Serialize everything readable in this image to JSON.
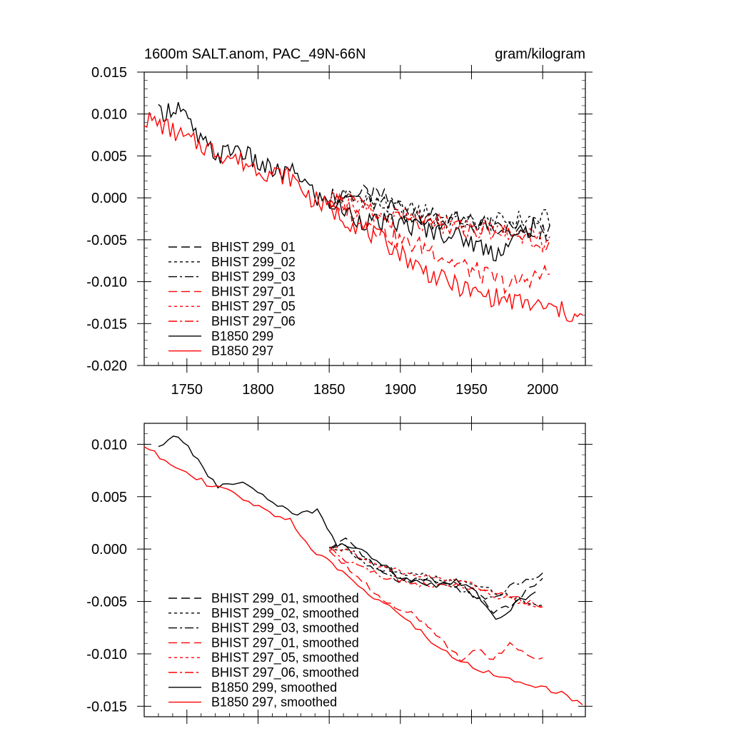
{
  "chart_data": [
    {
      "type": "line",
      "title_left": "1600m SALT.anom, PAC_49N-66N",
      "title_right": "gram/kilogram",
      "xlim": [
        1720,
        2030
      ],
      "ylim": [
        -0.02,
        0.015
      ],
      "xticks": [
        1750,
        1800,
        1850,
        1900,
        1950,
        2000
      ],
      "xtick_labels": [
        "1750",
        "1800",
        "1850",
        "1900",
        "1950",
        "2000"
      ],
      "yticks": [
        0.015,
        0.01,
        0.005,
        0.0,
        -0.005,
        -0.01,
        -0.015,
        -0.02
      ],
      "ytick_labels": [
        "0.015",
        "0.010",
        "0.005",
        "0.000",
        "-0.005",
        "-0.010",
        "-0.015",
        "-0.020"
      ],
      "legend_position": "bottom-left",
      "series": [
        {
          "name": "BHIST 299_01",
          "color": "#000000",
          "dash": "long-dash",
          "start": 1850,
          "end": 2005,
          "values": [
            0.0,
            0.0005,
            0.0,
            -0.002,
            -0.0025,
            -0.003,
            -0.0033,
            -0.0037,
            -0.004
          ]
        },
        {
          "name": "BHIST 299_02",
          "color": "#000000",
          "dash": "dotted",
          "start": 1850,
          "end": 2005,
          "values": [
            0.0,
            0.0002,
            -0.001,
            -0.0015,
            -0.002,
            -0.003,
            -0.003,
            -0.0025,
            -0.0025
          ]
        },
        {
          "name": "BHIST 299_03",
          "color": "#000000",
          "dash": "dash-dot",
          "start": 1850,
          "end": 2005,
          "values": [
            0.0,
            0.0,
            -0.001,
            -0.002,
            -0.0028,
            -0.003,
            -0.0035,
            -0.004,
            -0.004
          ]
        },
        {
          "name": "BHIST 297_01",
          "color": "#ff0000",
          "dash": "long-dash",
          "start": 1850,
          "end": 2005,
          "values": [
            0.0,
            -0.0015,
            -0.003,
            -0.0045,
            -0.0055,
            -0.006,
            -0.0075,
            -0.0085,
            -0.0095,
            -0.0105,
            -0.0095,
            -0.009
          ]
        },
        {
          "name": "BHIST 297_05",
          "color": "#ff0000",
          "dash": "dotted",
          "start": 1850,
          "end": 2005,
          "values": [
            0.0,
            -0.001,
            -0.002,
            -0.0025,
            -0.003,
            -0.0035,
            -0.0035,
            -0.0042,
            -0.0055
          ]
        },
        {
          "name": "BHIST 297_06",
          "color": "#ff0000",
          "dash": "dash-dot",
          "start": 1850,
          "end": 2005,
          "values": [
            0.0,
            -0.001,
            -0.0025,
            -0.003,
            -0.0035,
            -0.0038,
            -0.004,
            -0.0045,
            -0.0055
          ]
        },
        {
          "name": "B1850 299",
          "color": "#000000",
          "dash": "solid",
          "start": 1730,
          "end": 1995,
          "values": [
            0.01,
            0.011,
            0.007,
            0.005,
            0.006,
            0.004,
            0.003,
            0.003,
            0.0,
            -0.001,
            -0.0025,
            -0.003,
            -0.003,
            -0.0035,
            -0.004,
            -0.0045,
            -0.0055,
            -0.0065,
            -0.005,
            -0.003
          ]
        },
        {
          "name": "B1850 297",
          "color": "#ff0000",
          "dash": "solid",
          "start": 1720,
          "end": 2028,
          "values": [
            0.0095,
            0.0085,
            0.007,
            0.006,
            0.005,
            0.004,
            0.003,
            0.0025,
            0.0,
            -0.0015,
            -0.003,
            -0.0045,
            -0.006,
            -0.008,
            -0.0095,
            -0.0105,
            -0.0115,
            -0.012,
            -0.0125,
            -0.013,
            -0.0135,
            -0.0145
          ]
        }
      ]
    },
    {
      "type": "line",
      "xlim": [
        1720,
        2030
      ],
      "ylim": [
        -0.016,
        0.012
      ],
      "yticks": [
        0.01,
        0.005,
        0.0,
        -0.005,
        -0.01,
        -0.015
      ],
      "ytick_labels": [
        "0.010",
        "0.005",
        "0.000",
        "-0.005",
        "-0.010",
        "-0.015"
      ],
      "legend_position": "bottom-left",
      "series": [
        {
          "name": "BHIST 299_01, smoothed",
          "color": "#000000",
          "dash": "long-dash",
          "start": 1850,
          "end": 2000,
          "values": [
            0.0,
            0.0008,
            -0.0005,
            -0.002,
            -0.0025,
            -0.003,
            -0.0028,
            -0.0032,
            -0.0035,
            -0.0045,
            -0.006,
            -0.0055,
            -0.004,
            -0.003
          ]
        },
        {
          "name": "BHIST 299_02, smoothed",
          "color": "#000000",
          "dash": "dotted",
          "start": 1850,
          "end": 2000,
          "values": [
            0.0,
            0.0,
            -0.001,
            -0.0015,
            -0.002,
            -0.0025,
            -0.0025,
            -0.003,
            -0.0032,
            -0.0035,
            -0.004,
            -0.0045,
            -0.005,
            -0.0055
          ]
        },
        {
          "name": "BHIST 299_03, smoothed",
          "color": "#000000",
          "dash": "dash-dot",
          "start": 1850,
          "end": 2000,
          "values": [
            0.0,
            0.0005,
            -0.0012,
            -0.002,
            -0.003,
            -0.0032,
            -0.003,
            -0.0035,
            -0.004,
            -0.0045,
            -0.0048,
            -0.0035,
            -0.003,
            -0.0025
          ]
        },
        {
          "name": "BHIST 297_01, smoothed",
          "color": "#ff0000",
          "dash": "long-dash",
          "start": 1850,
          "end": 2000,
          "values": [
            0.0,
            -0.0015,
            -0.003,
            -0.0045,
            -0.0055,
            -0.006,
            -0.0075,
            -0.009,
            -0.0105,
            -0.0095,
            -0.0105,
            -0.009,
            -0.01,
            -0.0105
          ]
        },
        {
          "name": "BHIST 297_05, smoothed",
          "color": "#ff0000",
          "dash": "dotted",
          "start": 1850,
          "end": 2000,
          "values": [
            0.0,
            0.0,
            -0.001,
            -0.0015,
            -0.002,
            -0.0025,
            -0.0025,
            -0.003,
            -0.003,
            -0.0035,
            -0.0045,
            -0.0048,
            -0.0052,
            -0.0058
          ]
        },
        {
          "name": "BHIST 297_06, smoothed",
          "color": "#ff0000",
          "dash": "dash-dot",
          "start": 1850,
          "end": 2000,
          "values": [
            0.0,
            -0.001,
            -0.0015,
            -0.0025,
            -0.0028,
            -0.0032,
            -0.0035,
            -0.0035,
            -0.0035,
            -0.004,
            -0.0042,
            -0.0045,
            -0.005,
            -0.0055
          ]
        },
        {
          "name": "B1850 299, smoothed",
          "color": "#000000",
          "dash": "solid",
          "start": 1730,
          "end": 1995,
          "values": [
            0.0098,
            0.0108,
            0.0085,
            0.0058,
            0.0065,
            0.0055,
            0.0042,
            0.0032,
            0.0038,
            0.0005,
            0.0,
            -0.001,
            -0.0025,
            -0.003,
            -0.0035,
            -0.003,
            -0.0042,
            -0.0068,
            -0.0052,
            -0.0042
          ]
        },
        {
          "name": "B1850 297, smoothed",
          "color": "#ff0000",
          "dash": "solid",
          "start": 1720,
          "end": 2028,
          "values": [
            0.0098,
            0.0085,
            0.0075,
            0.0062,
            0.0055,
            0.0045,
            0.0035,
            0.0028,
            0.0,
            -0.0015,
            -0.003,
            -0.0045,
            -0.0058,
            -0.0075,
            -0.0092,
            -0.0105,
            -0.0115,
            -0.012,
            -0.0128,
            -0.0132,
            -0.0138,
            -0.0148
          ]
        }
      ]
    }
  ]
}
